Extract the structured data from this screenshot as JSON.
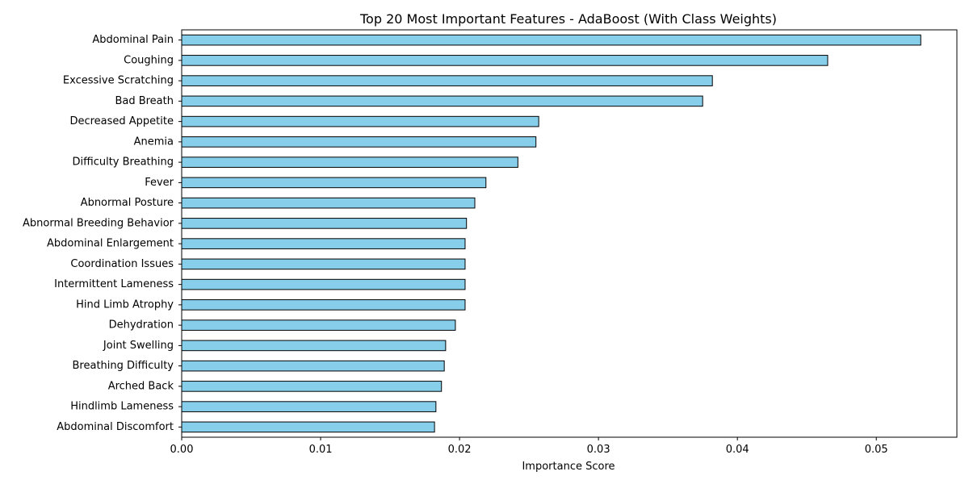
{
  "chart_data": {
    "type": "bar",
    "orientation": "horizontal",
    "title": "Top 20 Most Important Features - AdaBoost (With Class Weights)",
    "xlabel": "Importance Score",
    "ylabel": "",
    "xlim": [
      0,
      0.0558
    ],
    "xticks": [
      0.0,
      0.01,
      0.02,
      0.03,
      0.04,
      0.05
    ],
    "xtick_labels": [
      "0.00",
      "0.01",
      "0.02",
      "0.03",
      "0.04",
      "0.05"
    ],
    "grid": false,
    "bar_color": "#87CEEB",
    "edge_color": "#000000",
    "categories": [
      "Abdominal Pain",
      "Coughing",
      "Excessive Scratching",
      "Bad Breath",
      "Decreased Appetite",
      "Anemia",
      "Difficulty Breathing",
      "Fever",
      "Abnormal Posture",
      "Abnormal Breeding Behavior",
      "Abdominal Enlargement",
      "Coordination Issues",
      "Intermittent Lameness",
      "Hind Limb Atrophy",
      "Dehydration",
      "Joint Swelling",
      "Breathing Difficulty",
      "Arched Back",
      "Hindlimb Lameness",
      "Abdominal Discomfort"
    ],
    "values": [
      0.0532,
      0.0465,
      0.0382,
      0.0375,
      0.0257,
      0.0255,
      0.0242,
      0.0219,
      0.0211,
      0.0205,
      0.0204,
      0.0204,
      0.0204,
      0.0204,
      0.0197,
      0.019,
      0.0189,
      0.0187,
      0.0183,
      0.0182
    ]
  }
}
